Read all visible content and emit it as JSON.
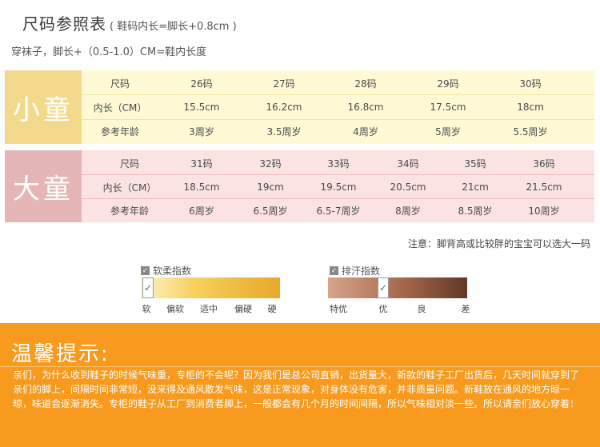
{
  "header": {
    "title": "尺码参照表",
    "title_note": "( 鞋码内长=脚长+0.8cm )",
    "subtitle": "穿袜子，脚长+（0.5-1.0）CM=鞋内长度"
  },
  "kids_table": {
    "category": "小童",
    "rows": [
      {
        "label": "尺码",
        "values": [
          "26码",
          "27码",
          "28码",
          "29码",
          "30码"
        ]
      },
      {
        "label": "内长（CM）",
        "values": [
          "15.5cm",
          "16.2cm",
          "16.8cm",
          "17.5cm",
          "18cm"
        ]
      },
      {
        "label": "参考年龄",
        "values": [
          "3周岁",
          "3.5周岁",
          "4周岁",
          "5周岁",
          "5.5周岁"
        ]
      }
    ]
  },
  "big_table": {
    "category": "大童",
    "rows": [
      {
        "label": "尺码",
        "values": [
          "31码",
          "32码",
          "33码",
          "34码",
          "35码",
          "36码"
        ]
      },
      {
        "label": "内长（CM）",
        "values": [
          "18.5cm",
          "19cm",
          "19.5cm",
          "20.5cm",
          "21cm",
          "21.5cm"
        ]
      },
      {
        "label": "参考年龄",
        "values": [
          "6周岁",
          "6.5周岁",
          "6.5-7周岁",
          "8周岁",
          "8.5周岁",
          "10周岁"
        ]
      }
    ]
  },
  "note": "注意：脚背高或比较胖的宝宝可以选大一码",
  "soft_index": {
    "title": "软柔指数",
    "labels": [
      "软",
      "偏软",
      "适中",
      "偏硬",
      "硬"
    ],
    "selected": "软",
    "colors": [
      "#fff3c6",
      "#e8a82a"
    ]
  },
  "sweat_index": {
    "title": "排汗指数",
    "labels": [
      "特优",
      "优",
      "良",
      "差"
    ],
    "selected": "优",
    "colors": [
      "#d7a48c",
      "#633826"
    ]
  },
  "tips": {
    "title": "温馨提示:",
    "body": "亲们，为什么收到鞋子的时候气味重，专柜的不会呢？因为我们是总公司直销，出货量大，新款的鞋子工厂出货后，几天时间就穿到了亲们的脚上，间隔时间非常短，没来得及通风散发气味，这是正常现象，对身体没有危害，并非质量问题。新鞋放在通风的地方晾一晾，味道会逐渐消失。专柜的鞋子从工厂到消费者脚上，一般都会有几个月的时间间隔，所以气味相对淡一些。所以请亲们放心穿着！"
  },
  "colors": {
    "kids_accent": "#f3d98b",
    "big_accent": "#e6b5b5",
    "tips_bg": "#f89a1d"
  }
}
